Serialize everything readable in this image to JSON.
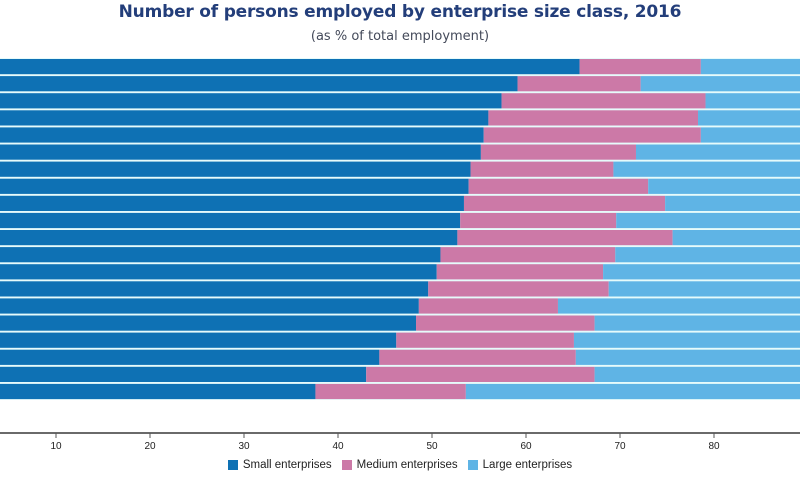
{
  "colors": {
    "small": "#0e71b4",
    "medium": "#cc79a7",
    "large": "#5fb4e5",
    "bar_gap": "#e6fbfb",
    "title": "#233e7a"
  },
  "chart_data": {
    "type": "bar",
    "orientation": "horizontal",
    "stacked": true,
    "title": "Number of persons employed by enterprise size class, 2016",
    "subtitle": "(as % of total employment)",
    "xlabel": "",
    "ylabel": "",
    "xlim_visible": [
      4,
      89
    ],
    "xticks": [
      10,
      20,
      30,
      40,
      50,
      60,
      70,
      80
    ],
    "grid": false,
    "legend_position": "bottom",
    "categories": [
      "",
      "",
      "",
      "",
      "",
      "",
      "",
      "",
      "",
      "",
      "",
      "",
      "",
      "",
      "",
      "",
      "",
      "",
      "",
      ""
    ],
    "series": [
      {
        "name": "Small enterprises",
        "key": "small",
        "values": [
          65.7,
          59.1,
          57.4,
          56.0,
          55.5,
          55.2,
          54.1,
          53.9,
          53.4,
          53.0,
          52.7,
          50.9,
          50.5,
          49.6,
          48.6,
          48.3,
          46.2,
          44.4,
          43.0,
          37.6
        ]
      },
      {
        "name": "Medium enterprises",
        "key": "medium",
        "values": [
          12.9,
          13.1,
          21.7,
          22.3,
          23.1,
          16.5,
          15.2,
          19.1,
          21.4,
          16.6,
          22.9,
          18.6,
          17.7,
          19.2,
          14.8,
          19.0,
          18.9,
          20.9,
          24.3,
          16.0
        ]
      },
      {
        "name": "Large enterprises",
        "key": "large",
        "values": [
          21.4,
          27.8,
          20.9,
          21.7,
          21.4,
          28.3,
          30.7,
          27.0,
          25.2,
          30.4,
          24.4,
          30.5,
          31.8,
          31.2,
          36.6,
          32.7,
          34.9,
          34.7,
          32.7,
          46.4
        ]
      }
    ]
  },
  "legend": {
    "items": [
      {
        "label": "Small enterprises",
        "key": "small"
      },
      {
        "label": "Medium enterprises",
        "key": "medium"
      },
      {
        "label": "Large enterprises",
        "key": "large"
      }
    ]
  }
}
